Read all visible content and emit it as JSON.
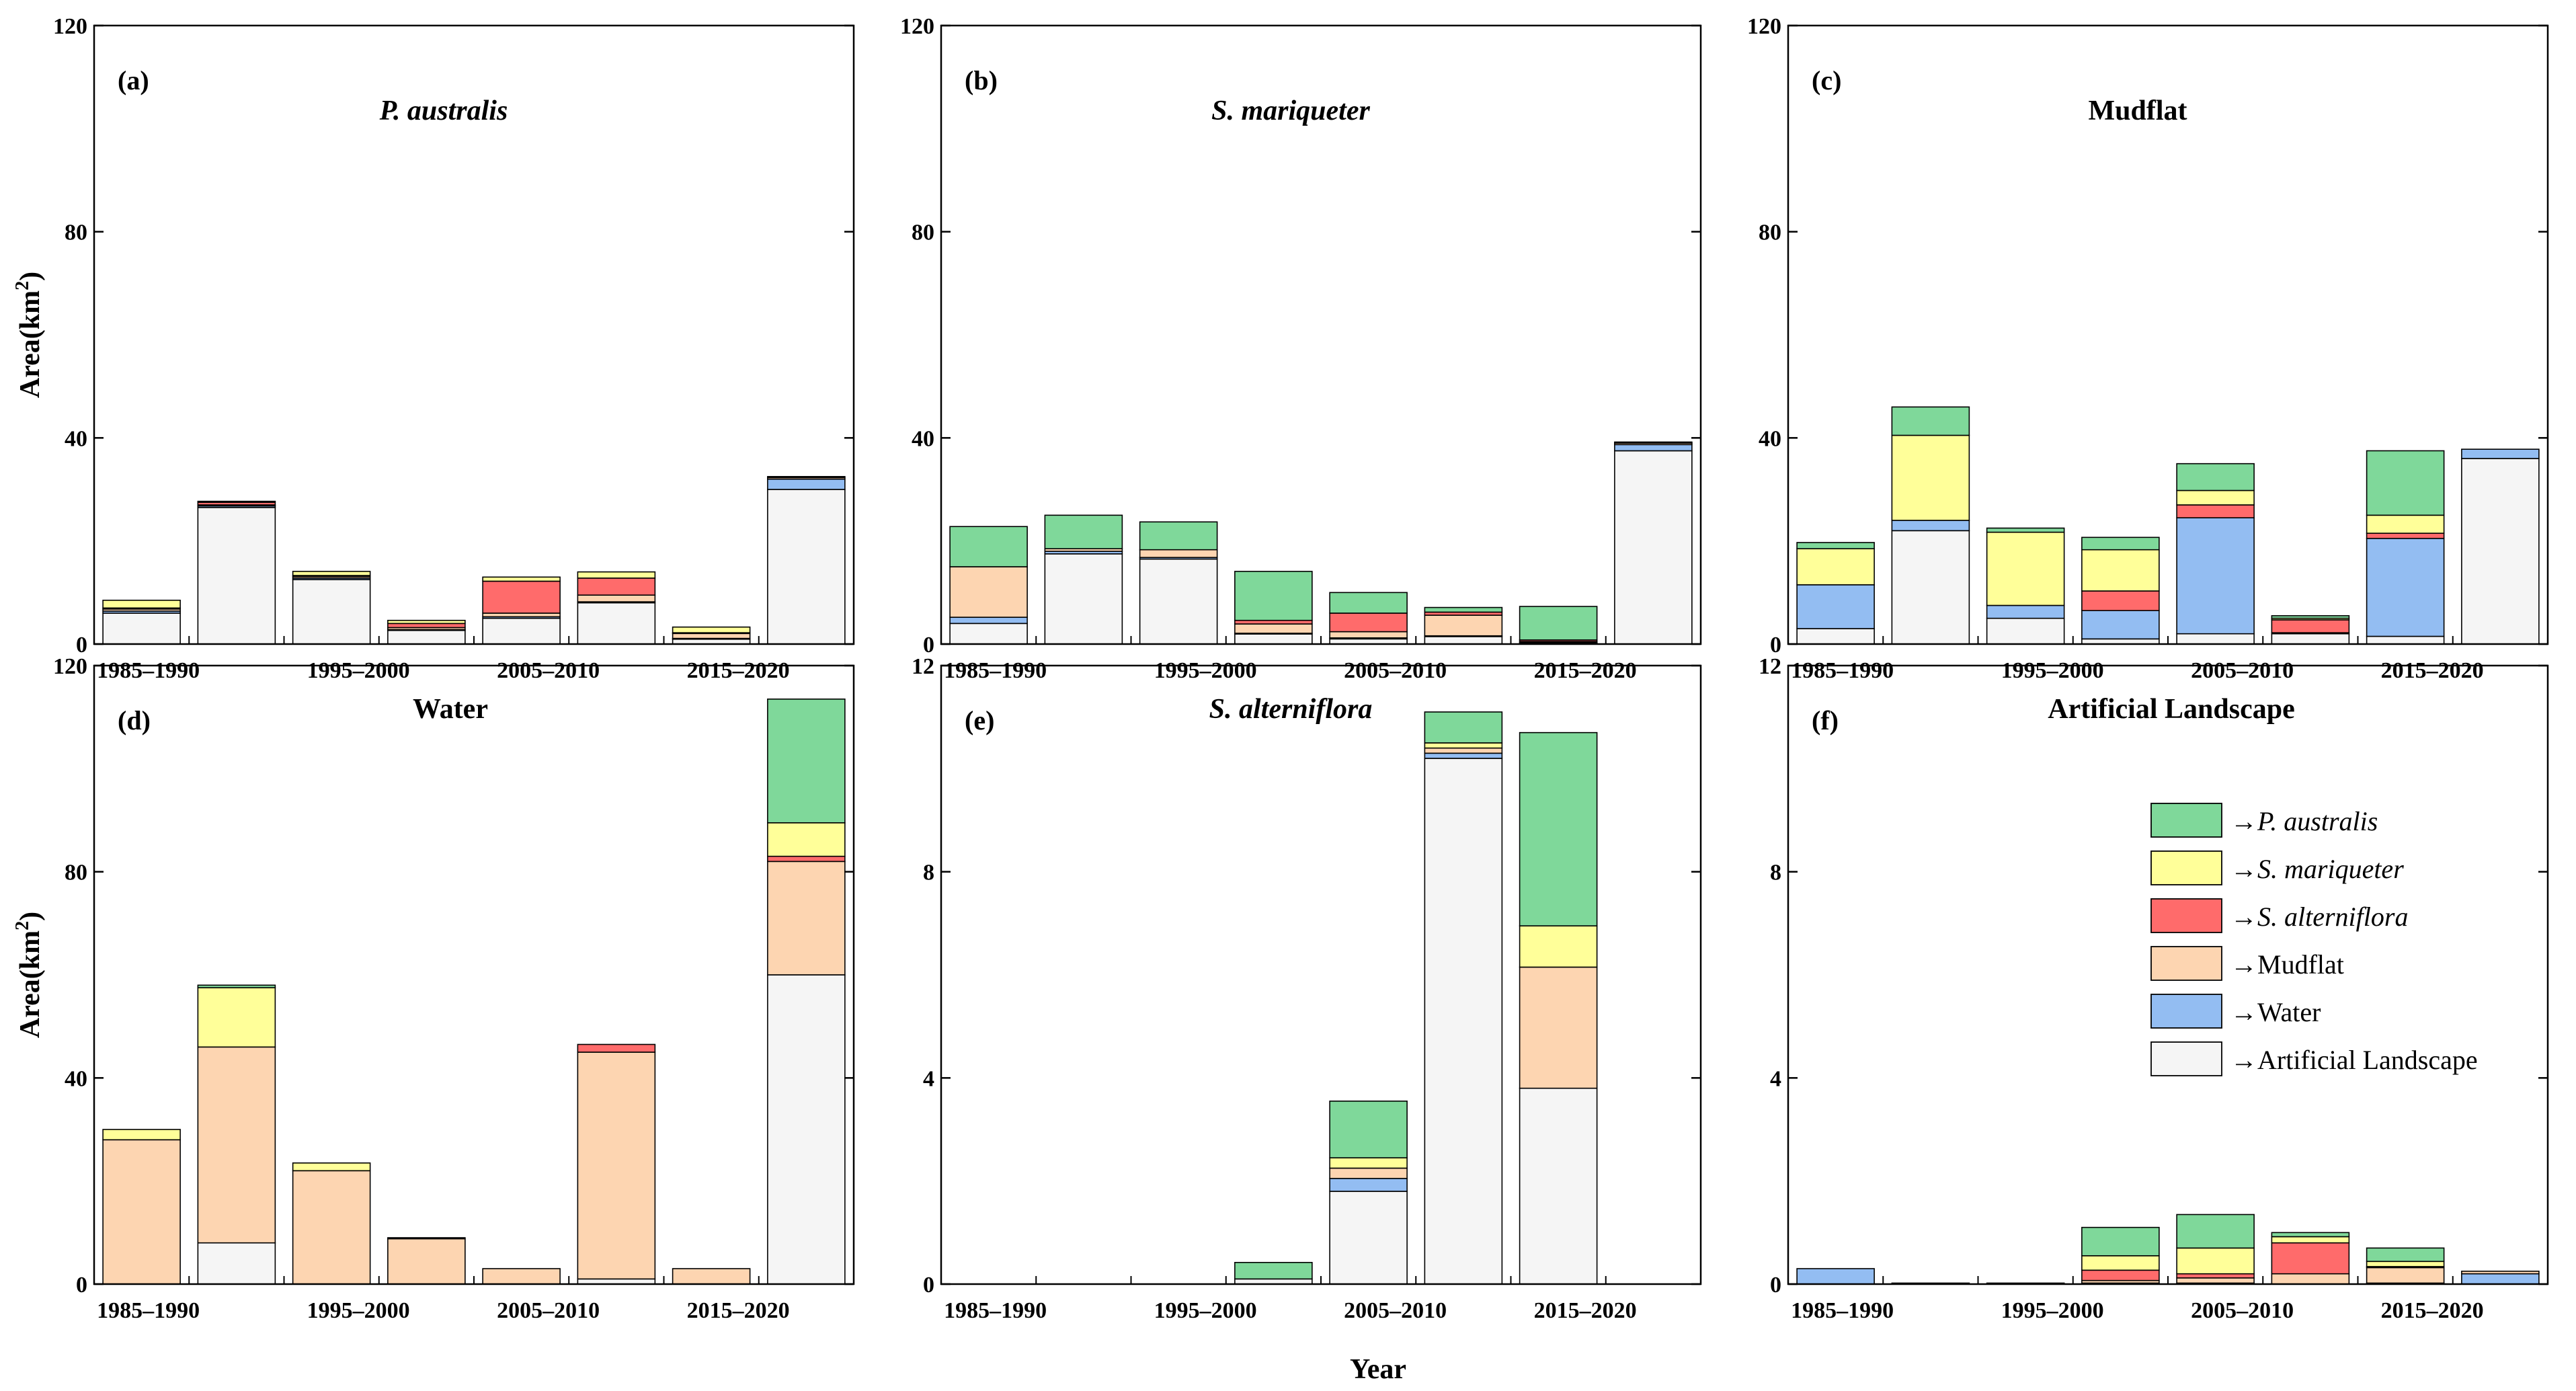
{
  "figure": {
    "xlabel": "Year",
    "ylabel": "Area(km²)",
    "ylabel_base": "Area(km",
    "ylabel_sup": "2",
    "ylabel_close": ")"
  },
  "colors": {
    "P_australis": "#7fd89a",
    "S_mariqueter": "#ffff99",
    "S_alterniflora": "#ff6b6b",
    "Mudflat": "#fdd5b1",
    "Water": "#93bdf2",
    "Artificial": "#f5f5f5"
  },
  "legend": {
    "items": [
      {
        "key": "P_australis",
        "arrow": "→",
        "name": "P. australis",
        "italic": true
      },
      {
        "key": "S_mariqueter",
        "arrow": "→",
        "name": "S. mariqueter",
        "italic": true
      },
      {
        "key": "S_alterniflora",
        "arrow": "→",
        "name": "S. alterniflora",
        "italic": true
      },
      {
        "key": "Mudflat",
        "arrow": "→",
        "name": "Mudflat",
        "italic": false
      },
      {
        "key": "Water",
        "arrow": "→",
        "name": "Water",
        "italic": false
      },
      {
        "key": "Artificial",
        "arrow": "→",
        "name": "Artificial Landscape",
        "italic": false
      }
    ]
  },
  "chart_data": [
    {
      "type": "bar",
      "stacked": true,
      "letter": "(a)",
      "title": "P. australis",
      "title_italic": true,
      "ylim": [
        0,
        120
      ],
      "yticks": [
        0,
        40,
        80,
        120
      ],
      "xtick_labels": [
        "1985–1990",
        "1995–2000",
        "2005–2010",
        "2015–2020"
      ],
      "bars": [
        {
          "Artificial": 6,
          "Water": 0.4,
          "Mudflat": 0.4,
          "S_alterniflora": 0.2,
          "S_mariqueter": 1.5,
          "P_australis": 0
        },
        {
          "Artificial": 26.5,
          "Water": 0.3,
          "Mudflat": 0.2,
          "S_alterniflora": 0.5,
          "S_mariqueter": 0.2,
          "P_australis": 0
        },
        {
          "Artificial": 12.5,
          "Water": 0.3,
          "Mudflat": 0.3,
          "S_alterniflora": 0.2,
          "S_mariqueter": 0.8,
          "P_australis": 0
        },
        {
          "Artificial": 2.7,
          "Water": 0.1,
          "Mudflat": 0.4,
          "S_alterniflora": 0.8,
          "S_mariqueter": 0.6,
          "P_australis": 0
        },
        {
          "Artificial": 5,
          "Water": 0.3,
          "Mudflat": 0.7,
          "S_alterniflora": 6.2,
          "S_mariqueter": 0.8,
          "P_australis": 0
        },
        {
          "Artificial": 8,
          "Water": 0.2,
          "Mudflat": 1.3,
          "S_alterniflora": 3.3,
          "S_mariqueter": 1.2,
          "P_australis": 0
        },
        {
          "Artificial": 1,
          "Water": 0.1,
          "Mudflat": 1,
          "S_alterniflora": 0.1,
          "S_mariqueter": 1.1,
          "P_australis": 0
        },
        {
          "Artificial": 30,
          "Water": 2,
          "Mudflat": 0.3,
          "S_alterniflora": 0.2,
          "S_mariqueter": 0,
          "P_australis": 0
        }
      ]
    },
    {
      "type": "bar",
      "stacked": true,
      "letter": "(b)",
      "title": "S. mariqueter",
      "title_italic": true,
      "ylim": [
        0,
        120
      ],
      "yticks": [
        0,
        40,
        80,
        120
      ],
      "xtick_labels": [
        "1985–1990",
        "1995–2000",
        "2005–2010",
        "2015–2020"
      ],
      "bars": [
        {
          "Artificial": 4,
          "Water": 1.2,
          "Mudflat": 9.8,
          "S_alterniflora": 0,
          "S_mariqueter": 0,
          "P_australis": 7.8
        },
        {
          "Artificial": 17.5,
          "Water": 0.5,
          "Mudflat": 0.5,
          "S_alterniflora": 0,
          "S_mariqueter": 0,
          "P_australis": 6.5
        },
        {
          "Artificial": 16.5,
          "Water": 0.3,
          "Mudflat": 1.5,
          "S_alterniflora": 0,
          "S_mariqueter": 0,
          "P_australis": 5.4
        },
        {
          "Artificial": 2,
          "Water": 0.1,
          "Mudflat": 1.8,
          "S_alterniflora": 0.7,
          "S_mariqueter": 0,
          "P_australis": 9.5
        },
        {
          "Artificial": 1,
          "Water": 0.2,
          "Mudflat": 1.2,
          "S_alterniflora": 3.6,
          "S_mariqueter": 0,
          "P_australis": 4
        },
        {
          "Artificial": 1.5,
          "Water": 0.1,
          "Mudflat": 4,
          "S_alterniflora": 0.6,
          "S_mariqueter": 0,
          "P_australis": 0.9
        },
        {
          "Artificial": 0.2,
          "Water": 0.1,
          "Mudflat": 0.2,
          "S_alterniflora": 0.3,
          "S_mariqueter": 0,
          "P_australis": 6.5
        },
        {
          "Artificial": 37.5,
          "Water": 1.2,
          "Mudflat": 0.3,
          "S_alterniflora": 0.2,
          "S_mariqueter": 0,
          "P_australis": 0
        }
      ]
    },
    {
      "type": "bar",
      "stacked": true,
      "letter": "(c)",
      "title": "Mudflat",
      "title_italic": false,
      "ylim": [
        0,
        120
      ],
      "yticks": [
        0,
        40,
        80,
        120
      ],
      "xtick_labels": [
        "1985–1990",
        "1995–2000",
        "2005–2010",
        "2015–2020"
      ],
      "bars": [
        {
          "Artificial": 3,
          "Water": 8.5,
          "Mudflat": 0,
          "S_alterniflora": 0,
          "S_mariqueter": 7,
          "P_australis": 1.2
        },
        {
          "Artificial": 22,
          "Water": 2,
          "Mudflat": 0,
          "S_alterniflora": 0,
          "S_mariqueter": 16.5,
          "P_australis": 5.5
        },
        {
          "Artificial": 5,
          "Water": 2.5,
          "Mudflat": 0,
          "S_alterniflora": 0,
          "S_mariqueter": 14.2,
          "P_australis": 0.8
        },
        {
          "Artificial": 1,
          "Water": 5.5,
          "Mudflat": 0,
          "S_alterniflora": 3.8,
          "S_mariqueter": 8,
          "P_australis": 2.4
        },
        {
          "Artificial": 2,
          "Water": 22.5,
          "Mudflat": 0,
          "S_alterniflora": 2.5,
          "S_mariqueter": 2.8,
          "P_australis": 5.2
        },
        {
          "Artificial": 2,
          "Water": 0.2,
          "Mudflat": 0,
          "S_alterniflora": 2.5,
          "S_mariqueter": 0.3,
          "P_australis": 0.5
        },
        {
          "Artificial": 1.5,
          "Water": 19,
          "Mudflat": 0,
          "S_alterniflora": 1,
          "S_mariqueter": 3.5,
          "P_australis": 12.5
        },
        {
          "Artificial": 36,
          "Water": 1.8,
          "Mudflat": 0,
          "S_alterniflora": 0,
          "S_mariqueter": 0,
          "P_australis": 0
        }
      ]
    },
    {
      "type": "bar",
      "stacked": true,
      "letter": "(d)",
      "title": "Water",
      "title_italic": false,
      "ylim": [
        0,
        120
      ],
      "yticks": [
        0,
        40,
        80,
        120
      ],
      "xtick_labels": [
        "1985–1990",
        "1995–2000",
        "2005–2010",
        "2015–2020"
      ],
      "bars": [
        {
          "Artificial": 0,
          "Water": 0,
          "Mudflat": 28,
          "S_alterniflora": 0,
          "S_mariqueter": 2,
          "P_australis": 0
        },
        {
          "Artificial": 8,
          "Water": 0,
          "Mudflat": 38,
          "S_alterniflora": 0,
          "S_mariqueter": 11.5,
          "P_australis": 0.5
        },
        {
          "Artificial": 0,
          "Water": 0,
          "Mudflat": 22,
          "S_alterniflora": 0,
          "S_mariqueter": 1.5,
          "P_australis": 0
        },
        {
          "Artificial": 0,
          "Water": 0,
          "Mudflat": 8.8,
          "S_alterniflora": 0.2,
          "S_mariqueter": 0,
          "P_australis": 0
        },
        {
          "Artificial": 0,
          "Water": 0,
          "Mudflat": 3,
          "S_alterniflora": 0,
          "S_mariqueter": 0,
          "P_australis": 0
        },
        {
          "Artificial": 1,
          "Water": 0,
          "Mudflat": 44,
          "S_alterniflora": 1.5,
          "S_mariqueter": 0,
          "P_australis": 0
        },
        {
          "Artificial": 0,
          "Water": 0,
          "Mudflat": 3,
          "S_alterniflora": 0,
          "S_mariqueter": 0,
          "P_australis": 0
        },
        {
          "Artificial": 60,
          "Water": 0,
          "Mudflat": 22,
          "S_alterniflora": 1,
          "S_mariqueter": 6.5,
          "P_australis": 24
        }
      ]
    },
    {
      "type": "bar",
      "stacked": true,
      "letter": "(e)",
      "title": "S. alterniflora",
      "title_italic": true,
      "ylim": [
        0,
        12
      ],
      "yticks": [
        0,
        4,
        8,
        12
      ],
      "xtick_labels": [
        "1985–1990",
        "1995–2000",
        "2005–2010",
        "2015–2020"
      ],
      "bars": [
        {
          "Artificial": 0,
          "Water": 0,
          "Mudflat": 0,
          "S_alterniflora": 0,
          "S_mariqueter": 0,
          "P_australis": 0
        },
        {
          "Artificial": 0,
          "Water": 0,
          "Mudflat": 0,
          "S_alterniflora": 0,
          "S_mariqueter": 0,
          "P_australis": 0
        },
        {
          "Artificial": 0,
          "Water": 0,
          "Mudflat": 0,
          "S_alterniflora": 0,
          "S_mariqueter": 0,
          "P_australis": 0
        },
        {
          "Artificial": 0.1,
          "Water": 0,
          "Mudflat": 0,
          "S_alterniflora": 0,
          "S_mariqueter": 0,
          "P_australis": 0.32
        },
        {
          "Artificial": 1.8,
          "Water": 0.25,
          "Mudflat": 0.2,
          "S_alterniflora": 0,
          "S_mariqueter": 0.2,
          "P_australis": 1.1
        },
        {
          "Artificial": 10.2,
          "Water": 0.1,
          "Mudflat": 0.1,
          "S_alterniflora": 0,
          "S_mariqueter": 0.1,
          "P_australis": 0.6
        },
        {
          "Artificial": 3.8,
          "Water": 0,
          "Mudflat": 2.35,
          "S_alterniflora": 0,
          "S_mariqueter": 0.8,
          "P_australis": 3.75
        },
        {
          "Artificial": 0,
          "Water": 0,
          "Mudflat": 0,
          "S_alterniflora": 0,
          "S_mariqueter": 0,
          "P_australis": 0
        }
      ]
    },
    {
      "type": "bar",
      "stacked": true,
      "letter": "(f)",
      "title": "Artificial Landscape",
      "title_italic": false,
      "ylim": [
        0,
        12
      ],
      "yticks": [
        0,
        4,
        8,
        12
      ],
      "xtick_labels": [
        "1985–1990",
        "1995–2000",
        "2005–2010",
        "2015–2020"
      ],
      "bars": [
        {
          "Artificial": 0,
          "Water": 0.3,
          "Mudflat": 0,
          "S_alterniflora": 0,
          "S_mariqueter": 0,
          "P_australis": 0
        },
        {
          "Artificial": 0,
          "Water": 0.02,
          "Mudflat": 0,
          "S_alterniflora": 0,
          "S_mariqueter": 0,
          "P_australis": 0
        },
        {
          "Artificial": 0,
          "Water": 0.02,
          "Mudflat": 0,
          "S_alterniflora": 0,
          "S_mariqueter": 0,
          "P_australis": 0
        },
        {
          "Artificial": 0,
          "Water": 0.02,
          "Mudflat": 0.05,
          "S_alterniflora": 0.2,
          "S_mariqueter": 0.28,
          "P_australis": 0.55
        },
        {
          "Artificial": 0,
          "Water": 0.02,
          "Mudflat": 0.1,
          "S_alterniflora": 0.08,
          "S_mariqueter": 0.5,
          "P_australis": 0.65
        },
        {
          "Artificial": 0,
          "Water": 0,
          "Mudflat": 0.2,
          "S_alterniflora": 0.6,
          "S_mariqueter": 0.12,
          "P_australis": 0.08
        },
        {
          "Artificial": 0,
          "Water": 0.02,
          "Mudflat": 0.3,
          "S_alterniflora": 0.02,
          "S_mariqueter": 0.1,
          "P_australis": 0.26
        },
        {
          "Artificial": 0,
          "Water": 0.2,
          "Mudflat": 0.05,
          "S_alterniflora": 0,
          "S_mariqueter": 0,
          "P_australis": 0
        }
      ]
    }
  ]
}
